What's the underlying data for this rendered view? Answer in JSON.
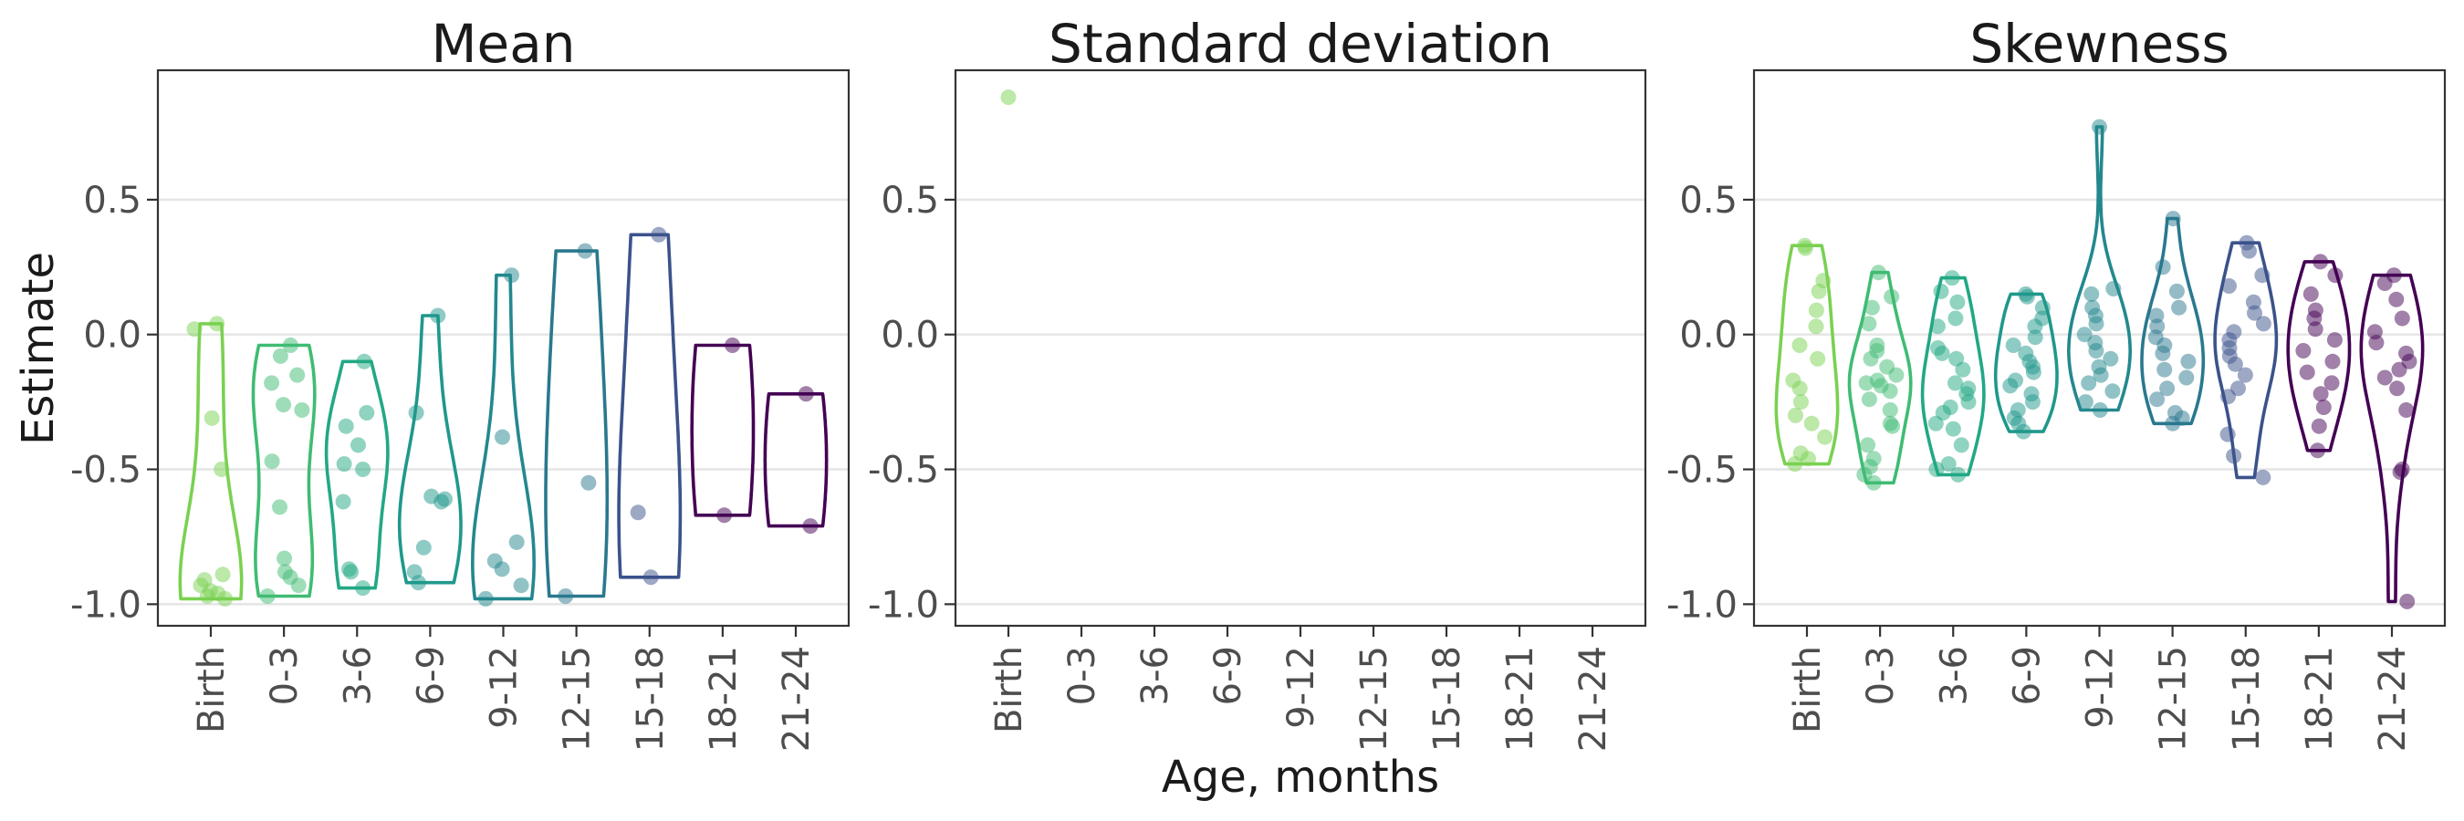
{
  "chart_data": {
    "type": "violin",
    "x_axis_title": "Age, months",
    "y_axis_title": "Estimate",
    "categories": [
      "Birth",
      "0-3",
      "3-6",
      "6-9",
      "9-12",
      "12-15",
      "15-18",
      "18-21",
      "21-24"
    ],
    "category_colors": [
      "#7AD151",
      "#3FBC73",
      "#22A884",
      "#1F988B",
      "#23888E",
      "#2A788E",
      "#3B528B",
      "#440154",
      "#440154"
    ],
    "ylim": [
      -1.08,
      0.98
    ],
    "y_ticks": [
      {
        "value": 0.5,
        "label": "0.5"
      },
      {
        "value": 0.0,
        "label": "0.0"
      },
      {
        "value": -0.5,
        "label": "-0.5"
      },
      {
        "value": -1.0,
        "label": "-1.0"
      }
    ],
    "grid": "horizontal major",
    "legend": "none",
    "panels": [
      {
        "title": "Mean",
        "groups": [
          {
            "category": "Birth",
            "points": [
              0.04,
              0.02,
              -0.31,
              -0.5,
              -0.89,
              -0.91,
              -0.93,
              -0.95,
              -0.96,
              -0.97,
              -0.98
            ]
          },
          {
            "category": "0-3",
            "points": [
              -0.04,
              -0.08,
              -0.15,
              -0.18,
              -0.26,
              -0.28,
              -0.47,
              -0.64,
              -0.83,
              -0.88,
              -0.9,
              -0.93,
              -0.97
            ]
          },
          {
            "category": "3-6",
            "points": [
              -0.1,
              -0.29,
              -0.34,
              -0.41,
              -0.48,
              -0.5,
              -0.62,
              -0.87,
              -0.88,
              -0.94
            ]
          },
          {
            "category": "6-9",
            "points": [
              0.07,
              -0.29,
              -0.6,
              -0.61,
              -0.62,
              -0.79,
              -0.88,
              -0.92
            ]
          },
          {
            "category": "9-12",
            "points": [
              0.22,
              -0.38,
              -0.77,
              -0.84,
              -0.87,
              -0.93,
              -0.98
            ]
          },
          {
            "category": "12-15",
            "points": [
              0.31,
              -0.55,
              -0.97
            ]
          },
          {
            "category": "15-18",
            "points": [
              0.37,
              -0.66,
              -0.9
            ]
          },
          {
            "category": "18-21",
            "points": [
              -0.04,
              -0.67
            ]
          },
          {
            "category": "21-24",
            "points": [
              -0.22,
              -0.71
            ]
          }
        ]
      },
      {
        "title": "Standard deviation",
        "groups": [
          {
            "category": "Birth",
            "points": [
              0.88
            ]
          }
        ]
      },
      {
        "title": "Skewness",
        "groups": [
          {
            "category": "Birth",
            "points": [
              0.33,
              0.32,
              0.2,
              0.16,
              0.09,
              0.03,
              -0.04,
              -0.09,
              -0.17,
              -0.2,
              -0.25,
              -0.3,
              -0.33,
              -0.38,
              -0.44,
              -0.46,
              -0.48
            ]
          },
          {
            "category": "0-3",
            "points": [
              0.23,
              0.14,
              0.1,
              0.04,
              -0.04,
              -0.06,
              -0.09,
              -0.12,
              -0.15,
              -0.17,
              -0.18,
              -0.19,
              -0.21,
              -0.24,
              -0.28,
              -0.33,
              -0.34,
              -0.41,
              -0.46,
              -0.49,
              -0.52,
              -0.55
            ]
          },
          {
            "category": "3-6",
            "points": [
              0.21,
              0.16,
              0.12,
              0.06,
              0.03,
              -0.05,
              -0.07,
              -0.09,
              -0.13,
              -0.18,
              -0.2,
              -0.22,
              -0.25,
              -0.27,
              -0.29,
              -0.33,
              -0.35,
              -0.41,
              -0.48,
              -0.5,
              -0.52
            ]
          },
          {
            "category": "6-9",
            "points": [
              0.15,
              0.14,
              0.1,
              0.06,
              0.03,
              -0.01,
              -0.04,
              -0.07,
              -0.1,
              -0.12,
              -0.14,
              -0.17,
              -0.19,
              -0.22,
              -0.25,
              -0.28,
              -0.31,
              -0.33,
              -0.36
            ]
          },
          {
            "category": "9-12",
            "points": [
              0.77,
              0.17,
              0.15,
              0.1,
              0.07,
              0.04,
              0.0,
              -0.03,
              -0.06,
              -0.09,
              -0.12,
              -0.15,
              -0.18,
              -0.21,
              -0.25,
              -0.28
            ]
          },
          {
            "category": "12-15",
            "points": [
              0.43,
              0.25,
              0.16,
              0.1,
              0.07,
              0.03,
              -0.01,
              -0.04,
              -0.07,
              -0.1,
              -0.13,
              -0.16,
              -0.2,
              -0.24,
              -0.29,
              -0.31,
              -0.33
            ]
          },
          {
            "category": "15-18",
            "points": [
              0.34,
              0.31,
              0.22,
              0.18,
              0.12,
              0.08,
              0.04,
              0.01,
              -0.02,
              -0.05,
              -0.08,
              -0.11,
              -0.15,
              -0.2,
              -0.23,
              -0.37,
              -0.45,
              -0.53
            ]
          },
          {
            "category": "18-21",
            "points": [
              0.27,
              0.22,
              0.15,
              0.09,
              0.06,
              0.02,
              -0.02,
              -0.06,
              -0.1,
              -0.14,
              -0.18,
              -0.22,
              -0.27,
              -0.34,
              -0.43
            ]
          },
          {
            "category": "21-24",
            "points": [
              0.22,
              0.19,
              0.13,
              0.06,
              0.01,
              -0.03,
              -0.07,
              -0.1,
              -0.13,
              -0.16,
              -0.2,
              -0.28,
              -0.5,
              -0.51,
              -0.99
            ]
          }
        ]
      }
    ]
  }
}
